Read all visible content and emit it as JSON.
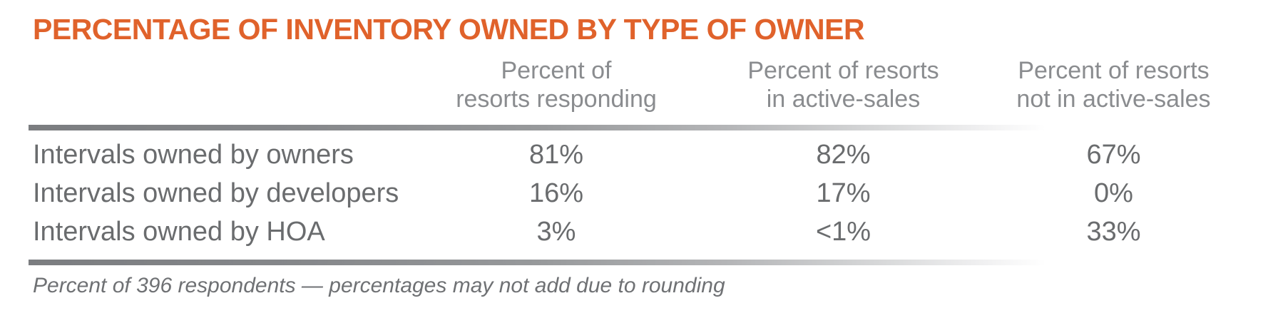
{
  "title": "PERCENTAGE OF INVENTORY OWNED BY TYPE OF OWNER",
  "colors": {
    "title_orange": "#E0622B",
    "header_gray": "#8A8C8F",
    "body_gray": "#6A6C6E",
    "rule_gray_start": "#7B7D80",
    "background": "#FFFFFF"
  },
  "table": {
    "headers": [
      {
        "line1": "Percent of",
        "line2": "resorts responding"
      },
      {
        "line1": "Percent of resorts",
        "line2": "in active-sales"
      },
      {
        "line1": "Percent of resorts",
        "line2": "not in active-sales"
      }
    ]
  },
  "chart_data": {
    "type": "table",
    "title": "PERCENTAGE OF INVENTORY OWNED BY TYPE OF OWNER",
    "columns": [
      "Percent of resorts responding",
      "Percent of resorts in active-sales",
      "Percent of resorts not in active-sales"
    ],
    "rows": [
      {
        "label": "Intervals owned by owners",
        "values": [
          "81%",
          "82%",
          "67%"
        ]
      },
      {
        "label": "Intervals owned by developers",
        "values": [
          "16%",
          "17%",
          "0%"
        ]
      },
      {
        "label": "Intervals owned by HOA",
        "values": [
          "3%",
          "<1%",
          "33%"
        ]
      }
    ],
    "footnote": "Percent of 396 respondents — percentages may not add due to rounding"
  }
}
